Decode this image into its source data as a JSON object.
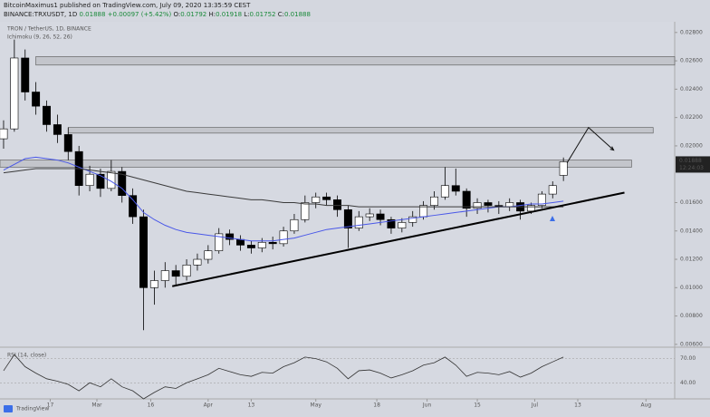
{
  "header": {
    "publisher": "BitcoinMaximus1 published on TradingView.com, July 09, 2020 13:35:59 CEST",
    "symbol": "BINANCE:TRXUSDT, 1D",
    "change": "+0.00097 (+5.42%)",
    "ohlc_labels": [
      "O:",
      "H:",
      "L:",
      "C:"
    ]
  },
  "footer": {
    "brand": "TradingView"
  },
  "chart_data": [
    {
      "type": "candlestick",
      "title": "TRON / TetherUS, 1D, BINANCE",
      "indicator": "Ichimoku (9, 26, 52, 26)",
      "countdown": "12:24:03",
      "x": [
        -13,
        -10,
        -7,
        -4,
        -1,
        2,
        5,
        8,
        11,
        14,
        17,
        20,
        23,
        26,
        29,
        32,
        35,
        38,
        41,
        44,
        47,
        50,
        53,
        56,
        59,
        62,
        65,
        68,
        71,
        74,
        77,
        80,
        83,
        86,
        89,
        92,
        95,
        98,
        101,
        104,
        107,
        110,
        113,
        116,
        119,
        122,
        125,
        128,
        131,
        134,
        137,
        140,
        143
      ],
      "open": [
        0.0205,
        0.0212,
        0.0262,
        0.0238,
        0.0228,
        0.0215,
        0.0208,
        0.0196,
        0.0172,
        0.018,
        0.017,
        0.0182,
        0.0165,
        0.015,
        0.01,
        0.0105,
        0.0112,
        0.0108,
        0.0116,
        0.012,
        0.0126,
        0.0138,
        0.0134,
        0.013,
        0.0128,
        0.0132,
        0.0131,
        0.014,
        0.0148,
        0.016,
        0.0164,
        0.0162,
        0.0155,
        0.0142,
        0.015,
        0.0152,
        0.0148,
        0.0142,
        0.0146,
        0.015,
        0.0158,
        0.0164,
        0.0172,
        0.0168,
        0.0156,
        0.016,
        0.0158,
        0.0157,
        0.016,
        0.0154,
        0.0158,
        0.0166,
        0.01792
      ],
      "high": [
        0.0218,
        0.0275,
        0.0268,
        0.0245,
        0.0232,
        0.0222,
        0.0213,
        0.02,
        0.0186,
        0.0184,
        0.019,
        0.0185,
        0.017,
        0.0155,
        0.0112,
        0.0118,
        0.0116,
        0.012,
        0.0124,
        0.013,
        0.0142,
        0.0141,
        0.0137,
        0.0133,
        0.0135,
        0.0136,
        0.0143,
        0.0152,
        0.0165,
        0.0167,
        0.0167,
        0.0165,
        0.0158,
        0.0154,
        0.0156,
        0.0155,
        0.015,
        0.0149,
        0.0154,
        0.0161,
        0.0168,
        0.0185,
        0.0184,
        0.017,
        0.0163,
        0.0162,
        0.0161,
        0.0163,
        0.0162,
        0.016,
        0.0168,
        0.0175,
        0.01918
      ],
      "low": [
        0.0198,
        0.021,
        0.0232,
        0.0222,
        0.021,
        0.0202,
        0.019,
        0.0165,
        0.0168,
        0.0164,
        0.0168,
        0.016,
        0.0145,
        0.007,
        0.0088,
        0.01,
        0.0102,
        0.0105,
        0.0112,
        0.0117,
        0.0124,
        0.013,
        0.0126,
        0.0124,
        0.0125,
        0.0127,
        0.0129,
        0.0138,
        0.0146,
        0.0156,
        0.0158,
        0.015,
        0.0128,
        0.014,
        0.0147,
        0.0144,
        0.0138,
        0.0139,
        0.0143,
        0.0148,
        0.0155,
        0.0162,
        0.0165,
        0.015,
        0.0152,
        0.0153,
        0.0152,
        0.0154,
        0.0148,
        0.0152,
        0.0156,
        0.0163,
        0.01752
      ],
      "close": [
        0.0212,
        0.0262,
        0.0238,
        0.0228,
        0.0215,
        0.0208,
        0.0196,
        0.0172,
        0.018,
        0.017,
        0.0182,
        0.0165,
        0.015,
        0.01,
        0.0105,
        0.0112,
        0.0108,
        0.0116,
        0.012,
        0.0126,
        0.0138,
        0.0134,
        0.013,
        0.0128,
        0.0132,
        0.0131,
        0.014,
        0.0148,
        0.016,
        0.0164,
        0.0162,
        0.0155,
        0.0142,
        0.015,
        0.0152,
        0.0148,
        0.0142,
        0.0146,
        0.015,
        0.0158,
        0.0164,
        0.0172,
        0.0168,
        0.0156,
        0.016,
        0.0158,
        0.0157,
        0.016,
        0.0154,
        0.0158,
        0.0166,
        0.0172,
        0.01888
      ],
      "up_color": "#ffffff",
      "down_color": "#000000",
      "series": [
        {
          "color": "#4a58e8",
          "values": [
            0.0183,
            0.0187,
            0.0191,
            0.0192,
            0.0191,
            0.019,
            0.0188,
            0.0185,
            0.0182,
            0.0179,
            0.0175,
            0.017,
            0.0162,
            0.0153,
            0.0148,
            0.0144,
            0.0141,
            0.0139,
            0.0138,
            0.0137,
            0.0136,
            0.0135,
            0.0134,
            0.0133,
            0.0133,
            0.0133,
            0.0134,
            0.0135,
            0.0137,
            0.0139,
            0.0141,
            0.0142,
            0.0143,
            0.0144,
            0.0145,
            0.0146,
            0.0147,
            0.0148,
            0.0149,
            0.015,
            0.0151,
            0.0152,
            0.0153,
            0.0154,
            0.0155,
            0.0156,
            0.0157,
            0.0157,
            0.0158,
            0.0159,
            0.0159,
            0.016,
            0.0161
          ]
        },
        {
          "color": "#3a3a3a",
          "values": [
            0.0181,
            0.0182,
            0.0183,
            0.0184,
            0.0184,
            0.0184,
            0.0184,
            0.0184,
            0.0183,
            0.0182,
            0.0181,
            0.018,
            0.0178,
            0.0176,
            0.0174,
            0.0172,
            0.017,
            0.0168,
            0.0167,
            0.0166,
            0.0165,
            0.0164,
            0.0163,
            0.0162,
            0.0162,
            0.0161,
            0.016,
            0.016,
            0.0159,
            0.0159,
            0.0158,
            0.0158,
            0.0158,
            0.0157,
            0.0157,
            0.0157,
            0.0157,
            0.0157,
            0.0157,
            0.0157,
            0.0157,
            0.0157,
            0.0157,
            0.0157,
            0.0157,
            0.0157,
            0.0157,
            0.0157,
            0.0157,
            0.0157,
            0.0157,
            0.0157,
            0.0157
          ]
        }
      ],
      "zones": [
        {
          "x": [
            -4,
            174
          ],
          "y": [
            0.0257,
            0.0263
          ]
        },
        {
          "x": [
            5,
            168
          ],
          "y": [
            0.0209,
            0.0213
          ]
        },
        {
          "x": [
            -14,
            162
          ],
          "y": [
            0.0185,
            0.019
          ]
        }
      ],
      "trendline": {
        "x": [
          34,
          160
        ],
        "y": [
          0.0101,
          0.0167
        ]
      },
      "projection": {
        "x": [
          144,
          150,
          157
        ],
        "y": [
          0.0188,
          0.0213,
          0.0197
        ]
      },
      "xlim": [
        -14,
        174
      ],
      "ylim": [
        0.0058,
        0.0285
      ],
      "xticks": [
        {
          "value": 0,
          "label": "17"
        },
        {
          "value": 13,
          "label": "Mar"
        },
        {
          "value": 28,
          "label": "16"
        },
        {
          "value": 44,
          "label": "Apr"
        },
        {
          "value": 56,
          "label": "13"
        },
        {
          "value": 74,
          "label": "May"
        },
        {
          "value": 91,
          "label": "18"
        },
        {
          "value": 105,
          "label": "Jun"
        },
        {
          "value": 119,
          "label": "15"
        },
        {
          "value": 135,
          "label": "Jul"
        },
        {
          "value": 147,
          "label": "13"
        },
        {
          "value": 166,
          "label": "Aug"
        }
      ],
      "yticks": [
        {
          "value": 0.006,
          "label": "0.00600"
        },
        {
          "value": 0.008,
          "label": "0.00800"
        },
        {
          "value": 0.01,
          "label": "0.01000"
        },
        {
          "value": 0.012,
          "label": "0.01200"
        },
        {
          "value": 0.014,
          "label": "0.01400"
        },
        {
          "value": 0.016,
          "label": "0.01600"
        },
        {
          "value": 0.02,
          "label": "0.02000"
        },
        {
          "value": 0.022,
          "label": "0.02200"
        },
        {
          "value": 0.024,
          "label": "0.02400"
        },
        {
          "value": 0.026,
          "label": "0.02600"
        },
        {
          "value": 0.028,
          "label": "0.02800"
        }
      ]
    },
    {
      "type": "line",
      "title": "RSI (14, close)",
      "color": "#333333",
      "values": [
        55,
        75,
        60,
        52,
        45,
        42,
        38,
        30,
        40,
        35,
        45,
        35,
        30,
        20,
        28,
        35,
        33,
        40,
        45,
        50,
        58,
        54,
        50,
        48,
        53,
        52,
        60,
        65,
        72,
        70,
        66,
        58,
        45,
        55,
        56,
        52,
        46,
        50,
        55,
        62,
        65,
        72,
        62,
        48,
        53,
        52,
        50,
        54,
        47,
        52,
        60,
        66,
        72
      ],
      "ylim": [
        20,
        82
      ],
      "yticks": [
        {
          "value": 70,
          "label": "70.00"
        },
        {
          "value": 40,
          "label": "40.00"
        }
      ]
    }
  ]
}
